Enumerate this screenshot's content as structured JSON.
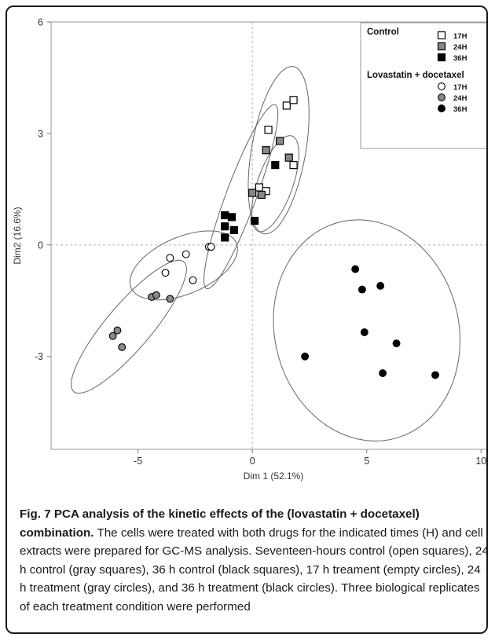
{
  "chart_data": {
    "type": "scatter",
    "xlabel": "Dim 1 (52.1%)",
    "ylabel": "Dim2 (16.6%)",
    "xlim": [
      -8.8,
      10.3
    ],
    "ylim": [
      -5.5,
      6.0
    ],
    "x_ticks": [
      -5,
      0,
      5,
      10
    ],
    "y_ticks": [
      -3,
      0,
      3,
      6
    ],
    "grid": false,
    "reference_lines": {
      "x": 0,
      "y": 0,
      "style": "dashed"
    },
    "legend_position": "top-right",
    "legend": {
      "groups": [
        {
          "title": "Control",
          "entries": [
            "17H",
            "24H",
            "36H"
          ]
        },
        {
          "title": "Lovastatin + docetaxel",
          "entries": [
            "17H",
            "24H",
            "36H"
          ]
        }
      ]
    },
    "series": [
      {
        "group": "Control",
        "name": "17H",
        "marker": "square",
        "fill": "#ffffff",
        "points": [
          [
            0.7,
            3.1
          ],
          [
            1.5,
            3.75
          ],
          [
            1.8,
            3.9
          ],
          [
            1.8,
            2.15
          ],
          [
            0.3,
            1.55
          ],
          [
            0.6,
            1.45
          ]
        ]
      },
      {
        "group": "Control",
        "name": "24H",
        "marker": "square",
        "fill": "#888888",
        "points": [
          [
            0.6,
            2.55
          ],
          [
            1.2,
            2.8
          ],
          [
            1.6,
            2.35
          ],
          [
            0.0,
            1.4
          ],
          [
            0.4,
            1.35
          ]
        ]
      },
      {
        "group": "Control",
        "name": "36H",
        "marker": "square",
        "fill": "#000000",
        "points": [
          [
            1.0,
            2.15
          ],
          [
            -1.2,
            0.8
          ],
          [
            -0.9,
            0.75
          ],
          [
            -1.2,
            0.5
          ],
          [
            -0.8,
            0.4
          ],
          [
            -1.2,
            0.2
          ],
          [
            0.1,
            0.65
          ]
        ]
      },
      {
        "group": "Lovastatin + docetaxel",
        "name": "17H",
        "marker": "circle",
        "fill": "#ffffff",
        "points": [
          [
            -3.6,
            -0.35
          ],
          [
            -2.9,
            -0.25
          ],
          [
            -1.9,
            -0.05
          ],
          [
            -1.8,
            -0.05
          ],
          [
            -3.8,
            -0.75
          ],
          [
            -2.6,
            -0.95
          ]
        ]
      },
      {
        "group": "Lovastatin + docetaxel",
        "name": "24H",
        "marker": "circle",
        "fill": "#888888",
        "points": [
          [
            -4.4,
            -1.4
          ],
          [
            -4.2,
            -1.35
          ],
          [
            -3.6,
            -1.45
          ],
          [
            -6.1,
            -2.45
          ],
          [
            -5.9,
            -2.3
          ],
          [
            -5.7,
            -2.75
          ]
        ]
      },
      {
        "group": "Lovastatin + docetaxel",
        "name": "36H",
        "marker": "circle",
        "fill": "#000000",
        "points": [
          [
            4.5,
            -0.65
          ],
          [
            4.8,
            -1.2
          ],
          [
            5.6,
            -1.1
          ],
          [
            4.9,
            -2.35
          ],
          [
            6.3,
            -2.65
          ],
          [
            2.3,
            -3.0
          ],
          [
            5.7,
            -3.45
          ],
          [
            8.0,
            -3.5
          ]
        ]
      }
    ],
    "ellipses": [
      {
        "center": [
          1.15,
          2.55
        ],
        "rx": 2.35,
        "ry": 1.15,
        "angle_deg": 71
      },
      {
        "center": [
          1.0,
          1.65
        ],
        "rx": 1.5,
        "ry": 0.7,
        "angle_deg": 55
      },
      {
        "center": [
          -0.5,
          1.3
        ],
        "rx": 2.9,
        "ry": 0.6,
        "angle_deg": 58
      },
      {
        "center": [
          -3.0,
          -0.55
        ],
        "rx": 2.4,
        "ry": 0.8,
        "angle_deg": 12
      },
      {
        "center": [
          -5.4,
          -2.2
        ],
        "rx": 3.0,
        "ry": 0.75,
        "angle_deg": 34
      },
      {
        "center": [
          5.0,
          -2.3
        ],
        "rx": 4.1,
        "ry": 2.95,
        "angle_deg": -8
      }
    ]
  },
  "caption": {
    "title": "Fig. 7 PCA analysis of the kinetic effects of the (lovastatin + docetaxel) combination.",
    "body": "The cells were treated with both drugs for the indicated times (H) and cell extracts were prepared for GC-MS analysis. Seventeen-hours control (open squares), 24 h control (gray squares), 36 h control (black squares), 17 h treament (empty circles), 24 h treatment (gray circles), and 36 h treatment (black circles). Three biological replicates of each treatment condition were performed"
  }
}
